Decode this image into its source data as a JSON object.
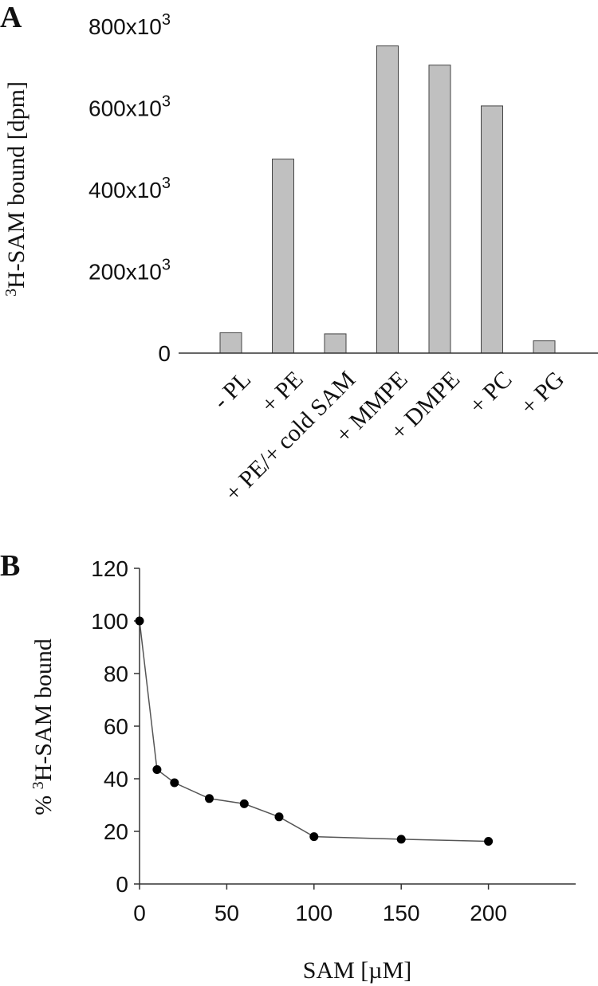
{
  "panel_labels": [
    "A",
    "B"
  ],
  "chart_data": [
    {
      "type": "bar",
      "panel": "A",
      "categories": [
        "- PL",
        "+ PE",
        "+ PE/+ cold SAM",
        "+ MMPE",
        "+ DMPE",
        "+ PC",
        "+ PG"
      ],
      "values": [
        50000,
        475000,
        47000,
        752000,
        705000,
        605000,
        30000
      ],
      "ylabel": {
        "sup": "3",
        "text": "H-SAM bound [dpm]"
      },
      "xlabel": "",
      "ylim": [
        0,
        800000
      ],
      "ytick_labels": [
        {
          "base": "0",
          "sup": ""
        },
        {
          "base": "200x10",
          "sup": "3"
        },
        {
          "base": "400x10",
          "sup": "3"
        },
        {
          "base": "600x10",
          "sup": "3"
        },
        {
          "base": "800x10",
          "sup": "3"
        }
      ],
      "ytick_values": [
        0,
        200000,
        400000,
        600000,
        800000
      ],
      "bar_color": "#c0c0c0",
      "grid": false
    },
    {
      "type": "line",
      "panel": "B",
      "x": [
        0,
        10,
        20,
        40,
        60,
        80,
        100,
        150,
        200
      ],
      "y": [
        100,
        43.5,
        38.5,
        32.5,
        30.5,
        25.5,
        18,
        17,
        16.2
      ],
      "xlabel": "SAM [µM]",
      "ylabel": {
        "prefix": "% ",
        "sup": "3",
        "text": "H-SAM bound"
      },
      "xlim": [
        0,
        250
      ],
      "ylim": [
        0,
        120
      ],
      "xticks": [
        0,
        50,
        100,
        150,
        200
      ],
      "yticks": [
        0,
        20,
        40,
        60,
        80,
        100,
        120
      ],
      "marker_color": "#000000",
      "line_color": "#555555",
      "grid": false
    }
  ]
}
